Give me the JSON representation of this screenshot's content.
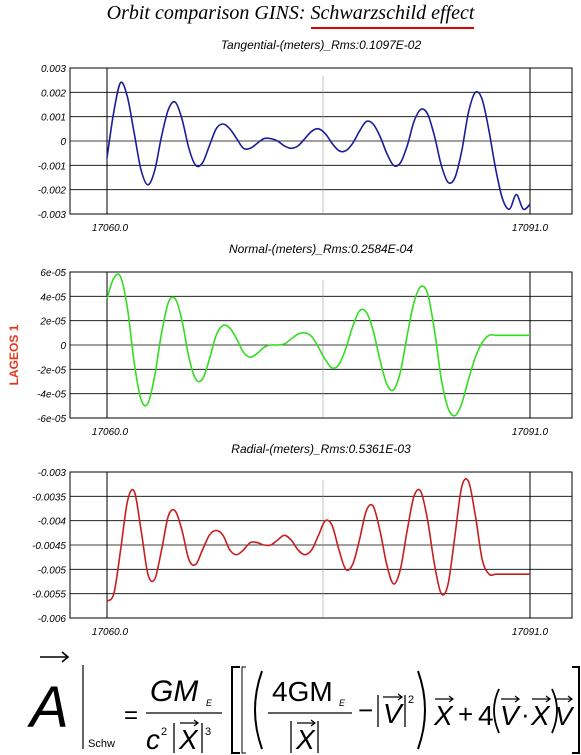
{
  "page": {
    "title_prefix": "Orbit comparison GINS: ",
    "title_highlight": "Schwarzschild effect",
    "side_label": "LAGEOS 1"
  },
  "chart_data": [
    {
      "type": "line",
      "title": "Tangential-(meters)_Rms:0.1097E-02",
      "x_tick_labels": [
        "17060.0",
        "17091.0"
      ],
      "xlim": [
        17060.0,
        17091.0
      ],
      "ylim": [
        -0.003,
        0.003
      ],
      "y_ticks": [
        0.003,
        0.002,
        0.001,
        0,
        -0.001,
        -0.002,
        -0.003
      ],
      "y_tick_labels": [
        "0.003",
        "0.002",
        "0.001",
        "0",
        "-0.001",
        "-0.002",
        "-0.003"
      ],
      "grid": true,
      "color": "#1c1c9a",
      "series": [
        {
          "x": [
            17060.0,
            17060.5,
            17061.0,
            17061.5,
            17062.0,
            17062.5,
            17063.0,
            17063.5,
            17064.0,
            17064.5,
            17065.0,
            17065.5,
            17066.0,
            17066.5,
            17067.0,
            17067.5,
            17068.0,
            17068.5,
            17069.0,
            17069.5,
            17070.0,
            17070.5,
            17071.0,
            17071.5,
            17072.0,
            17072.5,
            17073.0,
            17073.5,
            17074.0,
            17074.5,
            17075.0,
            17075.5,
            17076.0,
            17076.5,
            17077.0,
            17077.5,
            17078.0,
            17078.5,
            17079.0,
            17079.5,
            17080.0,
            17080.5,
            17081.0,
            17081.5,
            17082.0,
            17082.5,
            17083.0,
            17083.5,
            17084.0,
            17084.5,
            17085.0,
            17085.5,
            17086.0,
            17086.5,
            17087.0,
            17087.5,
            17088.0,
            17088.5,
            17089.0,
            17089.5,
            17090.0,
            17090.5,
            17091.0
          ],
          "y": [
            -0.0007,
            0.0012,
            0.0024,
            0.0018,
            0.0003,
            -0.0012,
            -0.0018,
            -0.0012,
            0.0002,
            0.0013,
            0.0016,
            0.0009,
            -0.0003,
            -0.001,
            -0.0009,
            -0.0002,
            0.0005,
            0.0007,
            0.0005,
            0.0001,
            -0.0003,
            -0.0003,
            -0.0001,
            0.0001,
            0.0001,
            0.0,
            -0.0002,
            -0.0003,
            -0.0002,
            0.0001,
            0.0004,
            0.0005,
            0.0003,
            -0.0001,
            -0.0004,
            -0.0004,
            -0.0001,
            0.0004,
            0.0008,
            0.0007,
            0.0002,
            -0.0005,
            -0.001,
            -0.0009,
            -0.0002,
            0.0008,
            0.0013,
            0.0011,
            0.0002,
            -0.001,
            -0.0017,
            -0.0015,
            -0.0004,
            0.0012,
            0.002,
            0.0017,
            0.0004,
            -0.0012,
            -0.0024,
            -0.0028,
            -0.0022,
            -0.0028,
            -0.0026
          ]
        }
      ]
    },
    {
      "type": "line",
      "title": "Normal-(meters)_Rms:0.2584E-04",
      "x_tick_labels": [
        "17060.0",
        "17091.0"
      ],
      "xlim": [
        17060.0,
        17091.0
      ],
      "ylim": [
        -6e-05,
        6e-05
      ],
      "y_ticks": [
        6e-05,
        4e-05,
        2e-05,
        0,
        -2e-05,
        -4e-05,
        -6e-05
      ],
      "y_tick_labels": [
        "6e-05",
        "4e-05",
        "2e-05",
        "0",
        "-2e-05",
        "-4e-05",
        "-6e-05"
      ],
      "grid": true,
      "color": "#33dd22",
      "series": [
        {
          "x": [
            17060.0,
            17060.5,
            17061.0,
            17061.5,
            17062.0,
            17062.5,
            17063.0,
            17063.5,
            17064.0,
            17064.5,
            17065.0,
            17065.5,
            17066.0,
            17066.5,
            17067.0,
            17067.5,
            17068.0,
            17068.5,
            17069.0,
            17069.5,
            17070.0,
            17070.5,
            17071.0,
            17071.5,
            17072.0,
            17072.5,
            17073.0,
            17073.5,
            17074.0,
            17074.5,
            17075.0,
            17075.5,
            17076.0,
            17076.5,
            17077.0,
            17077.5,
            17078.0,
            17078.5,
            17079.0,
            17079.5,
            17080.0,
            17080.5,
            17081.0,
            17081.5,
            17082.0,
            17082.5,
            17083.0,
            17083.5,
            17084.0,
            17084.5,
            17085.0,
            17085.5,
            17086.0,
            17086.5,
            17087.0,
            17087.5,
            17088.0,
            17088.5,
            17089.0,
            17089.5,
            17090.0,
            17090.5,
            17091.0
          ],
          "y": [
            3.8e-05,
            5.5e-05,
            5.6e-05,
            3e-05,
            -1.5e-05,
            -4.5e-05,
            -4.8e-05,
            -2.5e-05,
            1e-05,
            3.5e-05,
            3.8e-05,
            2e-05,
            -1e-05,
            -2.8e-05,
            -2.8e-05,
            -1.2e-05,
            8e-06,
            1.6e-05,
            1.4e-05,
            5e-06,
            -6e-06,
            -1e-05,
            -7e-06,
            -2e-06,
            0.0,
            0.0,
            1e-06,
            5e-06,
            9e-06,
            1e-05,
            7e-06,
            -2e-06,
            -1.2e-05,
            -1.9e-05,
            -1.6e-05,
            -3e-06,
            1.5e-05,
            2.8e-05,
            2.7e-05,
            1.2e-05,
            -1.2e-05,
            -3.2e-05,
            -3.7e-05,
            -2.2e-05,
            8e-06,
            3.5e-05,
            4.8e-05,
            4.2e-05,
            1.2e-05,
            -2.8e-05,
            -5.2e-05,
            -5.8e-05,
            -4.8e-05,
            -2.8e-05,
            -1e-05,
            2e-06,
            8e-06,
            8e-06,
            8e-06,
            8e-06,
            8e-06,
            8e-06,
            8e-06
          ]
        }
      ]
    },
    {
      "type": "line",
      "title": "Radial-(meters)_Rms:0.5361E-03",
      "x_tick_labels": [
        "17060.0",
        "17091.0"
      ],
      "xlim": [
        17060.0,
        17091.0
      ],
      "ylim": [
        -0.006,
        -0.003
      ],
      "y_ticks": [
        -0.003,
        -0.0035,
        -0.004,
        -0.0045,
        -0.005,
        -0.0055,
        -0.006
      ],
      "y_tick_labels": [
        "-0.003",
        "-0.0035",
        "-0.004",
        "-0.0045",
        "-0.005",
        "-0.0055",
        "-0.006"
      ],
      "grid": true,
      "color": "#c81e1e",
      "series": [
        {
          "x": [
            17060.0,
            17060.5,
            17061.0,
            17061.5,
            17062.0,
            17062.5,
            17063.0,
            17063.5,
            17064.0,
            17064.5,
            17065.0,
            17065.5,
            17066.0,
            17066.5,
            17067.0,
            17067.5,
            17068.0,
            17068.5,
            17069.0,
            17069.5,
            17070.0,
            17070.5,
            17071.0,
            17071.5,
            17072.0,
            17072.5,
            17073.0,
            17073.5,
            17074.0,
            17074.5,
            17075.0,
            17075.5,
            17076.0,
            17076.5,
            17077.0,
            17077.5,
            17078.0,
            17078.5,
            17079.0,
            17079.5,
            17080.0,
            17080.5,
            17081.0,
            17081.5,
            17082.0,
            17082.5,
            17083.0,
            17083.5,
            17084.0,
            17084.5,
            17085.0,
            17085.5,
            17086.0,
            17086.5,
            17087.0,
            17087.5,
            17088.0,
            17088.5,
            17089.0,
            17089.5,
            17090.0,
            17090.5,
            17091.0
          ],
          "y": [
            -0.00565,
            -0.0055,
            -0.0046,
            -0.0036,
            -0.0034,
            -0.0042,
            -0.0051,
            -0.0052,
            -0.0046,
            -0.0039,
            -0.0038,
            -0.0042,
            -0.0048,
            -0.0049,
            -0.0046,
            -0.0043,
            -0.0042,
            -0.0043,
            -0.0046,
            -0.0047,
            -0.0046,
            -0.00445,
            -0.00445,
            -0.0045,
            -0.0045,
            -0.0044,
            -0.0043,
            -0.0044,
            -0.0046,
            -0.0047,
            -0.0046,
            -0.0043,
            -0.004,
            -0.0041,
            -0.0046,
            -0.005,
            -0.0049,
            -0.0044,
            -0.0038,
            -0.0037,
            -0.0042,
            -0.0049,
            -0.0053,
            -0.005,
            -0.0042,
            -0.0035,
            -0.0034,
            -0.004,
            -0.0049,
            -0.0055,
            -0.0053,
            -0.0043,
            -0.0033,
            -0.0032,
            -0.0039,
            -0.0048,
            -0.0051,
            -0.0051,
            -0.0051,
            -0.0051,
            -0.0051,
            -0.0051,
            -0.0051
          ]
        }
      ]
    }
  ],
  "formula": {
    "A": "A",
    "schw": "Schw",
    "GM": "GM",
    "E": "E",
    "c": "c",
    "two": "2",
    "three": "3",
    "four_GM": "4GM",
    "X": "X",
    "V": "V",
    "minus": "−",
    "plus": "+",
    "four": "4",
    "equals": "=",
    "dot": "·"
  }
}
